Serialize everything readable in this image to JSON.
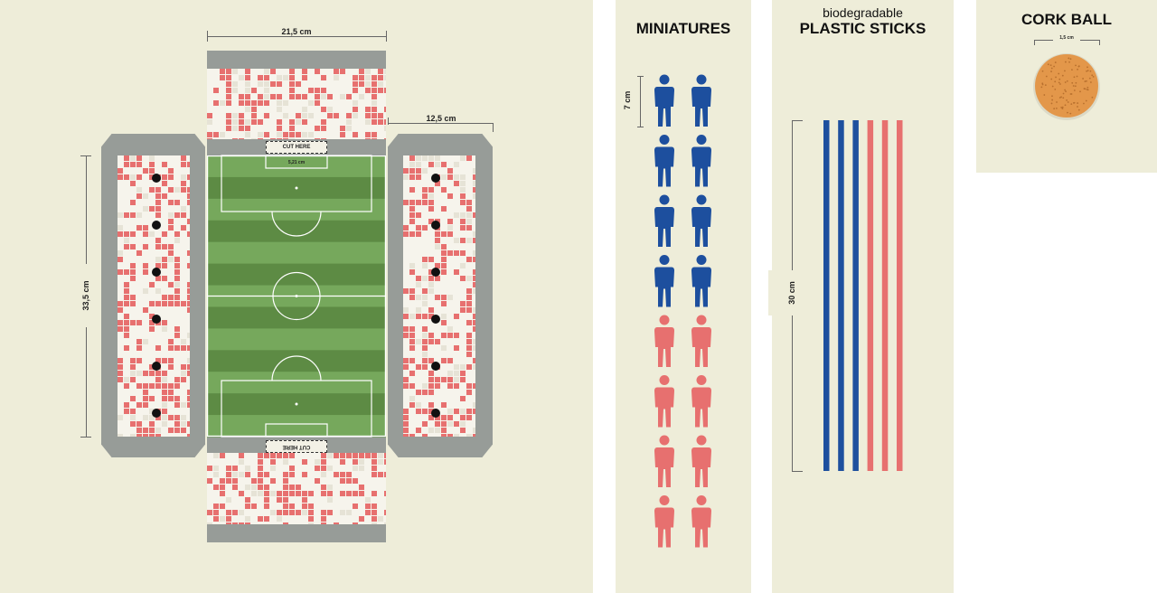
{
  "board": {
    "width_label": "21,5 cm",
    "height_label": "33,5 cm",
    "side_label": "12,5 cm",
    "goal_label": "5,21 cm",
    "cut_top": "CUT HERE",
    "cut_bottom": "CUT HERE"
  },
  "miniatures": {
    "title": "MINIATURES",
    "height_label": "7 cm",
    "team_colors": [
      "#1d4f9e",
      "#e7706f"
    ],
    "rows_per_team": 4,
    "columns": 2
  },
  "sticks": {
    "subtitle": "biodegradable",
    "title": "PLASTIC STICKS",
    "length_label": "30 cm",
    "colors": [
      "#1d4f9e",
      "#1d4f9e",
      "#1d4f9e",
      "#e7706f",
      "#e7706f",
      "#e7706f"
    ]
  },
  "ball": {
    "title": "CORK BALL",
    "diameter_label": "1,5 cm",
    "color": "#e3974a"
  },
  "colors": {
    "panel": "#eeedd9",
    "pitch_light": "#76a85c",
    "pitch_dark": "#5d8b44",
    "stand_red": "#e7706f",
    "frame_gray": "#979c98"
  }
}
